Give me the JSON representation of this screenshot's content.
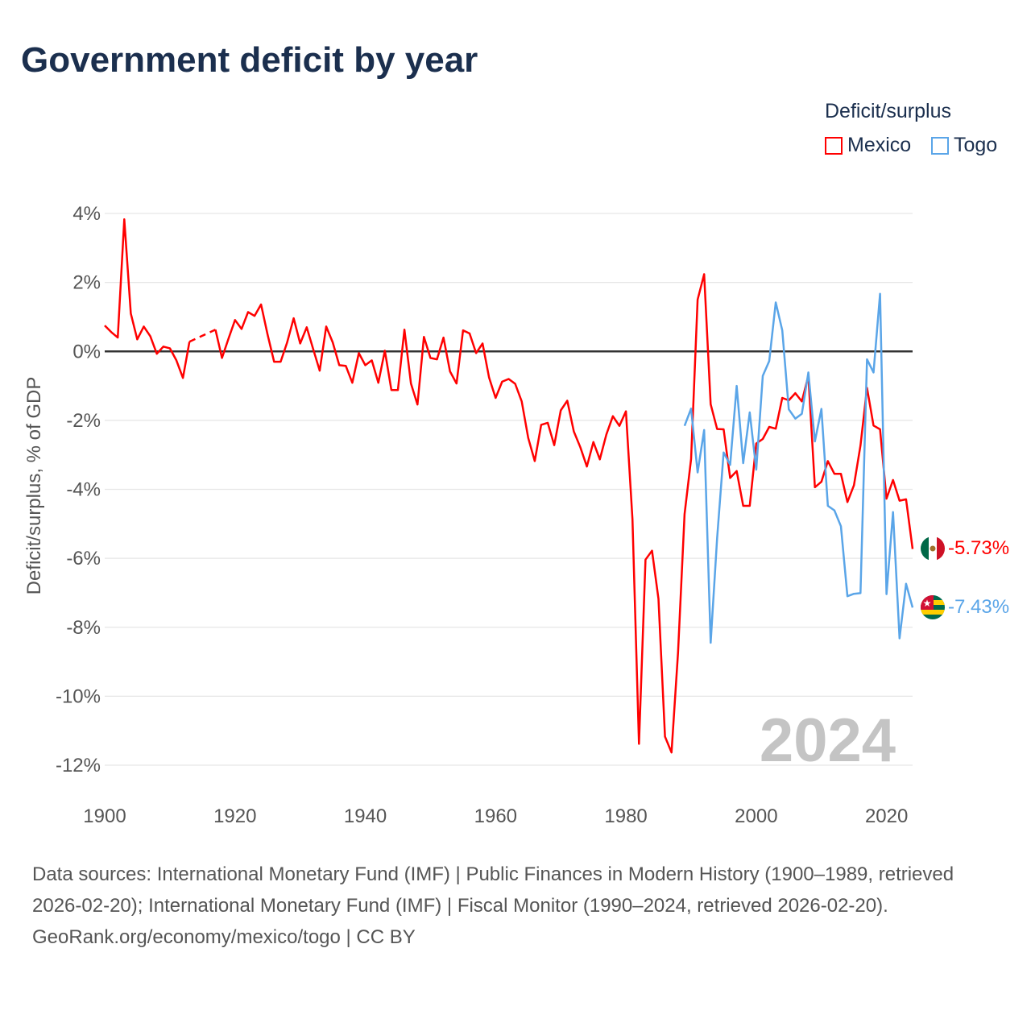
{
  "title": "Government deficit by year",
  "legend": {
    "title": "Deficit/surplus",
    "items": [
      {
        "label": "Mexico",
        "color": "#ff0000"
      },
      {
        "label": "Togo",
        "color": "#5aa5e8"
      }
    ]
  },
  "year_watermark": "2024",
  "footer": {
    "sources": "Data sources: International Monetary Fund (IMF) | Public Finances in Modern History (1900–1989, retrieved 2026-02-20); International Monetary Fund (IMF) | Fiscal Monitor (1990–2024, retrieved 2026-02-20).",
    "credit": "GeoRank.org/economy/mexico/togo | CC BY"
  },
  "chart_data": {
    "type": "line",
    "title": "Government deficit by year",
    "xlabel": "",
    "ylabel": "Deficit/surplus, % of GDP",
    "xlim": [
      1900,
      2024
    ],
    "ylim": [
      -12,
      4
    ],
    "x_ticks": [
      "1900",
      "1920",
      "1940",
      "1960",
      "1980",
      "2000",
      "2020"
    ],
    "y_ticks": [
      "4%",
      "2%",
      "0%",
      "-2%",
      "-4%",
      "-6%",
      "-8%",
      "-10%",
      "-12%"
    ],
    "y_tick_values": [
      4,
      2,
      0,
      -2,
      -4,
      -6,
      -8,
      -10,
      -12
    ],
    "grid": true,
    "legend_position": "top-right",
    "series": [
      {
        "name": "Mexico",
        "color": "#ff0000",
        "start_year": 1900,
        "end_label": "-5.73%",
        "values": [
          0.75,
          0.56,
          0.4,
          3.83,
          1.1,
          0.35,
          0.72,
          0.44,
          -0.07,
          0.14,
          0.09,
          -0.26,
          -0.77,
          0.28,
          null,
          null,
          null,
          0.63,
          -0.19,
          0.37,
          0.91,
          0.65,
          1.14,
          1.03,
          1.36,
          0.49,
          -0.3,
          -0.3,
          0.26,
          0.96,
          0.23,
          0.7,
          0.07,
          -0.56,
          0.72,
          0.26,
          -0.4,
          -0.42,
          -0.91,
          -0.05,
          -0.4,
          -0.26,
          -0.91,
          0.02,
          -1.12,
          -1.12,
          0.63,
          -0.93,
          -1.54,
          0.42,
          -0.19,
          -0.23,
          0.4,
          -0.58,
          -0.93,
          0.61,
          0.52,
          -0.05,
          0.23,
          -0.76,
          -1.35,
          -0.88,
          -0.8,
          -0.94,
          -1.45,
          -2.51,
          -3.18,
          -2.13,
          -2.07,
          -2.72,
          -1.71,
          -1.43,
          -2.32,
          -2.78,
          -3.34,
          -2.63,
          -3.13,
          -2.41,
          -1.88,
          -2.16,
          -1.74,
          -4.86,
          -11.38,
          -6.04,
          -5.78,
          -7.18,
          -11.17,
          -11.63,
          -8.73,
          -4.72,
          -3.12,
          1.5,
          2.24,
          -1.53,
          -2.25,
          -2.26,
          -3.67,
          -3.47,
          -4.48,
          -4.48,
          -2.67,
          -2.54,
          -2.19,
          -2.24,
          -1.35,
          -1.42,
          -1.21,
          -1.45,
          -0.71,
          -3.94,
          -3.78,
          -3.18,
          -3.55,
          -3.55,
          -4.37,
          -3.88,
          -2.73,
          -1.06,
          -2.15,
          -2.26,
          -4.27,
          -3.73,
          -4.33,
          -4.29,
          -5.73
        ]
      },
      {
        "name": "Togo",
        "color": "#5aa5e8",
        "start_year": 1989,
        "end_label": "-7.43%",
        "values": [
          -2.16,
          -1.66,
          -3.51,
          -2.28,
          -8.45,
          -5.42,
          -2.93,
          -3.29,
          -1.0,
          -3.24,
          -1.77,
          -3.43,
          -0.71,
          -0.28,
          1.42,
          0.61,
          -1.68,
          -1.95,
          -1.81,
          -0.61,
          -2.61,
          -1.67,
          -4.48,
          -4.61,
          -5.07,
          -7.1,
          -7.03,
          -7.01,
          -0.23,
          -0.61,
          1.67,
          -7.04,
          -4.66,
          -8.32,
          -6.74,
          -7.43
        ]
      }
    ]
  }
}
